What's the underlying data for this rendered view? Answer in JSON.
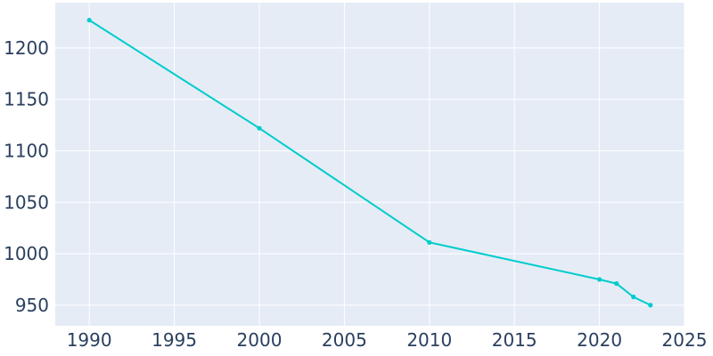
{
  "chart_data": {
    "type": "line",
    "title": "",
    "xlabel": "",
    "ylabel": "",
    "xlim": [
      1988,
      2025
    ],
    "ylim": [
      930,
      1244
    ],
    "xticks": [
      1990,
      1995,
      2000,
      2005,
      2010,
      2015,
      2020,
      2025
    ],
    "xtick_labels": [
      "1990",
      "1995",
      "2000",
      "2005",
      "2010",
      "2015",
      "2020",
      "2025"
    ],
    "yticks": [
      950,
      1000,
      1050,
      1100,
      1150,
      1200
    ],
    "ytick_labels": [
      "950",
      "1000",
      "1050",
      "1100",
      "1150",
      "1200"
    ],
    "grid": true,
    "legend": "none",
    "colors": {
      "plot_bg": "#e5ecf6",
      "line": "#00cccc",
      "text": "#2a3f5f",
      "grid": "#ffffff"
    },
    "series": [
      {
        "x": [
          1990,
          2000,
          2010,
          2020,
          2021,
          2022,
          2023
        ],
        "y": [
          1227,
          1122,
          1011,
          975,
          971,
          958,
          950
        ]
      }
    ]
  }
}
